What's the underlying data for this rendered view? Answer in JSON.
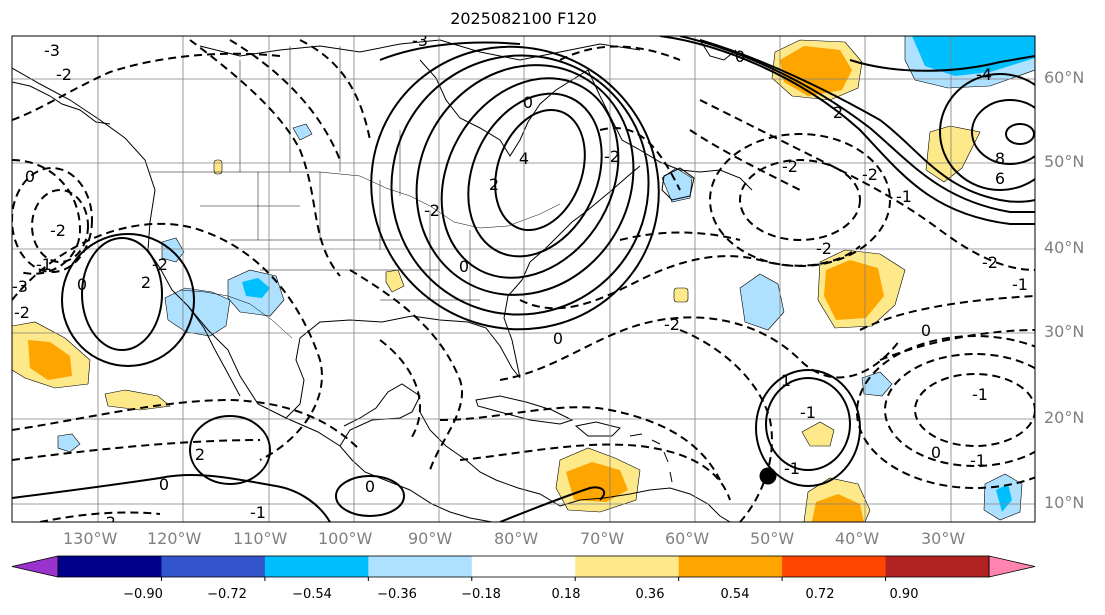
{
  "title": "2025082100 F120",
  "longitude_labels": [
    "130°W",
    "120°W",
    "110°W",
    "100°W",
    "90°W",
    "80°W",
    "70°W",
    "60°W",
    "50°W",
    "40°W",
    "30°W"
  ],
  "latitude_labels": [
    "60°N",
    "50°N",
    "40°N",
    "30°N",
    "20°N",
    "10°N"
  ],
  "colorbar": {
    "tick_labels": [
      "−0.90",
      "−0.72",
      "−0.54",
      "−0.36",
      "−0.18",
      "0.18",
      "0.36",
      "0.54",
      "0.72",
      "0.90"
    ],
    "colors": [
      "#9933cc",
      "#00008b",
      "#3355cc",
      "#00bfff",
      "#aee0ff",
      "#ffffff",
      "#fde98a",
      "#ffa500",
      "#ff4500",
      "#b22222",
      "#ff85b0"
    ]
  },
  "fill_colors": {
    "light_blue": "#aee0ff",
    "blue": "#00bfff",
    "yellow": "#fde98a",
    "orange": "#ffa500"
  },
  "contour_labels": [
    "-3",
    "-2",
    "0",
    "-2",
    "-1",
    "2",
    "-3",
    "-2",
    "0",
    "-2",
    "0",
    "2",
    "-1",
    "-2",
    "-3",
    "-2",
    "0",
    "0",
    "2",
    "4",
    "-2",
    "-4",
    "8",
    "6",
    "2",
    "-2",
    "-1",
    "-2",
    "0",
    "-2",
    "0",
    "1",
    "-2",
    "-1",
    "0",
    "0",
    "-1",
    "-1",
    "0",
    "-2",
    "-1",
    "-1"
  ],
  "marker": "storm-center-marker"
}
